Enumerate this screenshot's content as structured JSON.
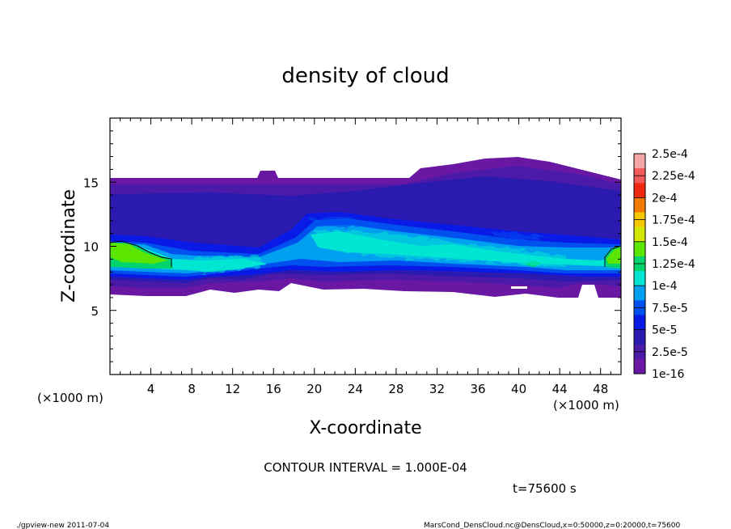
{
  "chart_data": {
    "type": "heatmap",
    "title": "density of cloud",
    "xlabel": "X-coordinate",
    "ylabel": "Z-coordinate",
    "x_unit_left": "(×1000 m)",
    "x_unit_right": "(×1000 m)",
    "xlim": [
      0,
      50
    ],
    "ylim": [
      0,
      20
    ],
    "x_ticks": [
      4,
      8,
      12,
      16,
      20,
      24,
      28,
      32,
      36,
      40,
      44,
      48
    ],
    "y_ticks": [
      5,
      10,
      15
    ],
    "colorbar": {
      "labels": [
        "2.5e-4",
        "2.25e-4",
        "2e-4",
        "1.75e-4",
        "1.5e-4",
        "1.25e-4",
        "1e-4",
        "7.5e-5",
        "5e-5",
        "2.5e-5",
        "1e-16"
      ],
      "colors": [
        "#f2a6a6",
        "#f25a5a",
        "#f02810",
        "#f37a00",
        "#f5c800",
        "#d2e600",
        "#5ae600",
        "#00d46e",
        "#00e6d2",
        "#00a0f0",
        "#0050f0",
        "#0a1ae6",
        "#2b1ab0",
        "#4b1aa8",
        "#6a18a4"
      ]
    },
    "cloud_layer": {
      "z_bottom": 6.3,
      "z_top": 15.3,
      "core_z_range": [
        7,
        11.5
      ],
      "max_density_approx": "1.25e-4"
    }
  },
  "annotations": {
    "contour_interval": "CONTOUR INTERVAL = 1.000E-04",
    "time": "t=75600 s",
    "footer_left": "./gpview-new  2011-07-04",
    "footer_right": "MarsCond_DensCloud.nc@DensCloud,x=0:50000,z=0:20000,t=75600"
  }
}
